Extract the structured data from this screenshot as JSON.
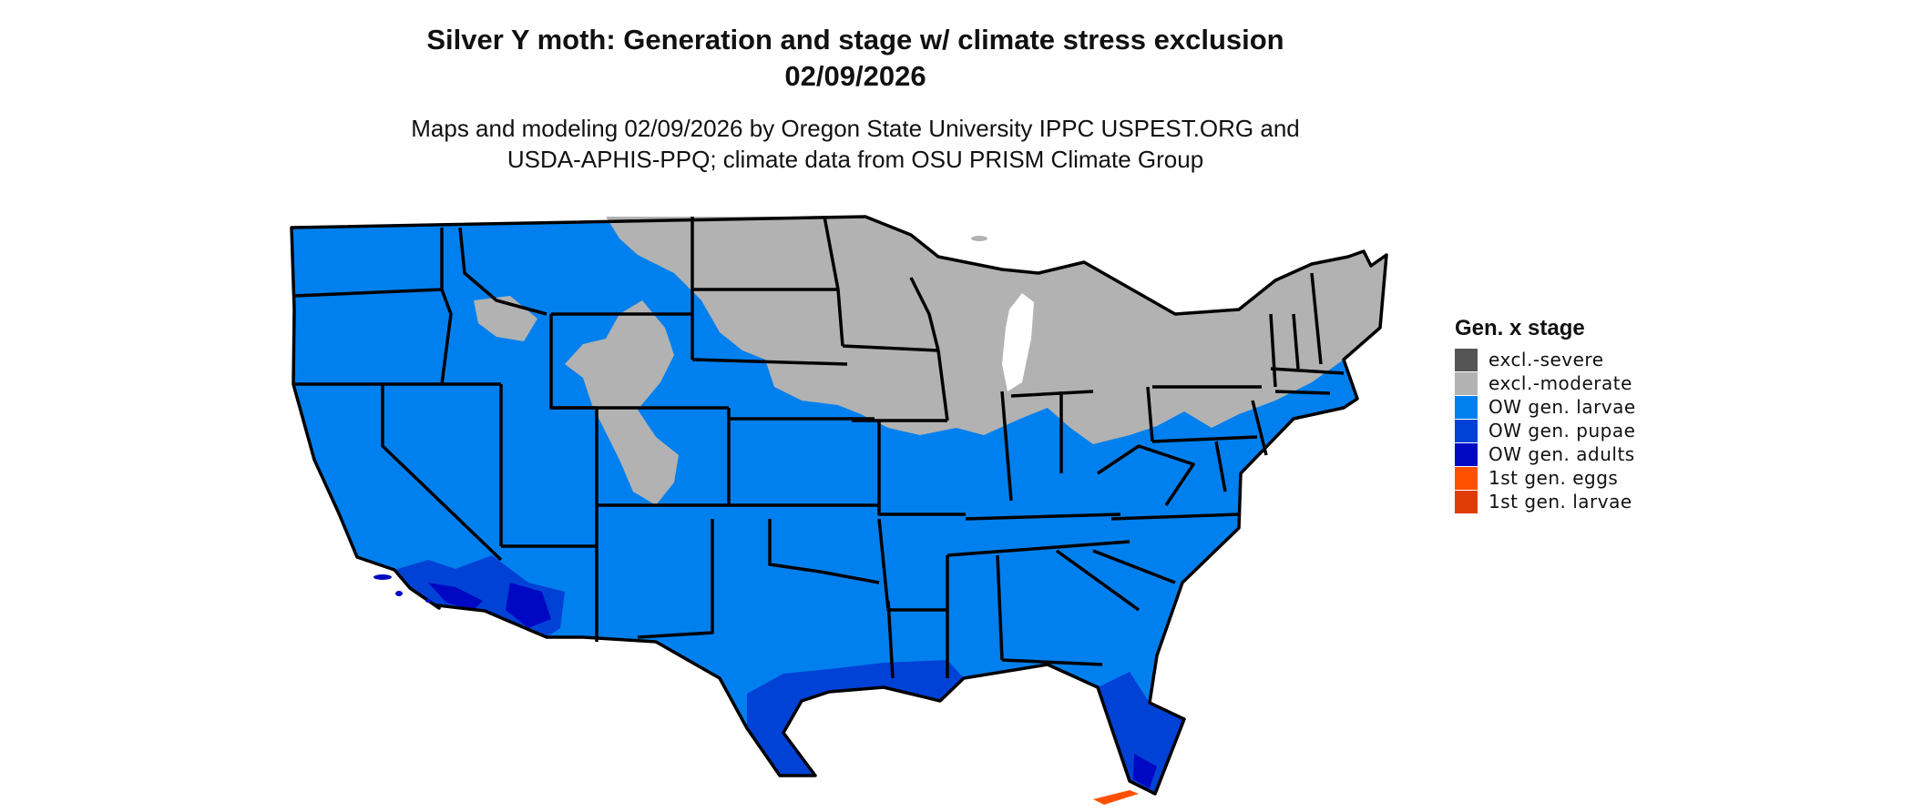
{
  "title": {
    "line1": "Silver Y moth: Generation and stage w/ climate stress exclusion",
    "line2": "02/09/2026"
  },
  "subtitle": {
    "line1": "Maps and modeling 02/09/2026 by Oregon State University IPPC USPEST.ORG and",
    "line2": "USDA-APHIS-PPQ; climate data from OSU PRISM Climate Group"
  },
  "legend": {
    "title": "Gen. x stage",
    "items": [
      {
        "label": "excl.-severe",
        "color": "#555555"
      },
      {
        "label": "excl.-moderate",
        "color": "#b2b2b2"
      },
      {
        "label": "OW gen. larvae",
        "color": "#0080ee"
      },
      {
        "label": "OW gen. pupae",
        "color": "#0042d6"
      },
      {
        "label": "OW gen. adults",
        "color": "#0008c4"
      },
      {
        "label": "1st gen. eggs",
        "color": "#ff5000"
      },
      {
        "label": "1st gen. larvae",
        "color": "#e03c05"
      }
    ]
  },
  "colors": {
    "border": "#000000",
    "background": "#ffffff"
  }
}
